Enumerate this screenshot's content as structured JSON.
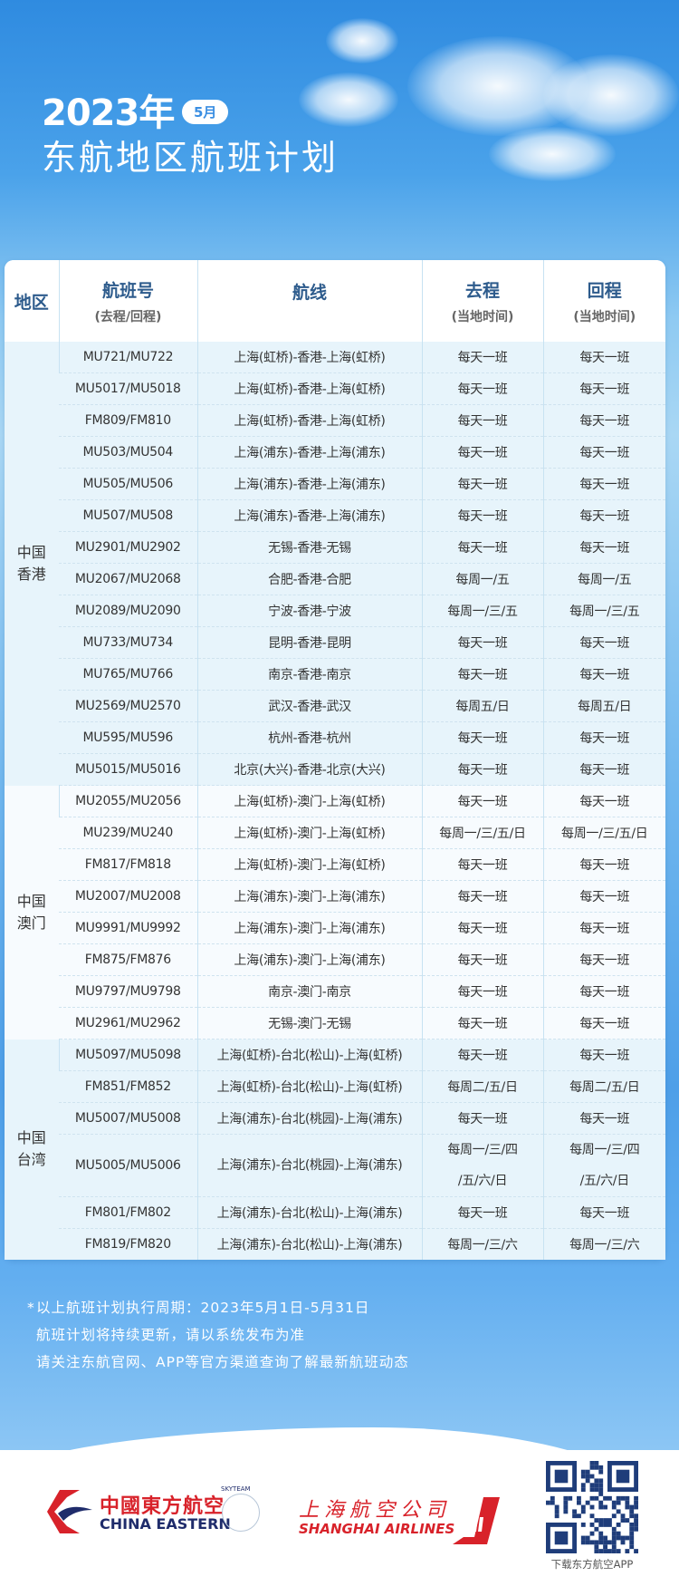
{
  "header": {
    "year": "2023年",
    "month_badge": "5月",
    "title": "东航地区航班计划"
  },
  "table": {
    "columns": [
      {
        "label": "地区",
        "sub": ""
      },
      {
        "label": "航班号",
        "sub": "(去程/回程)"
      },
      {
        "label": "航线",
        "sub": ""
      },
      {
        "label": "去程",
        "sub": "(当地时间)"
      },
      {
        "label": "回程",
        "sub": "(当地时间)"
      }
    ],
    "sections": [
      {
        "region": "中国\n香港",
        "rows": [
          {
            "flight": "MU721/MU722",
            "route": "上海(虹桥)-香港-上海(虹桥)",
            "outbound": "每天一班",
            "return": "每天一班"
          },
          {
            "flight": "MU5017/MU5018",
            "route": "上海(虹桥)-香港-上海(虹桥)",
            "outbound": "每天一班",
            "return": "每天一班"
          },
          {
            "flight": "FM809/FM810",
            "route": "上海(虹桥)-香港-上海(虹桥)",
            "outbound": "每天一班",
            "return": "每天一班"
          },
          {
            "flight": "MU503/MU504",
            "route": "上海(浦东)-香港-上海(浦东)",
            "outbound": "每天一班",
            "return": "每天一班"
          },
          {
            "flight": "MU505/MU506",
            "route": "上海(浦东)-香港-上海(浦东)",
            "outbound": "每天一班",
            "return": "每天一班"
          },
          {
            "flight": "MU507/MU508",
            "route": "上海(浦东)-香港-上海(浦东)",
            "outbound": "每天一班",
            "return": "每天一班"
          },
          {
            "flight": "MU2901/MU2902",
            "route": "无锡-香港-无锡",
            "outbound": "每天一班",
            "return": "每天一班"
          },
          {
            "flight": "MU2067/MU2068",
            "route": "合肥-香港-合肥",
            "outbound": "每周一/五",
            "return": "每周一/五"
          },
          {
            "flight": "MU2089/MU2090",
            "route": "宁波-香港-宁波",
            "outbound": "每周一/三/五",
            "return": "每周一/三/五"
          },
          {
            "flight": "MU733/MU734",
            "route": "昆明-香港-昆明",
            "outbound": "每天一班",
            "return": "每天一班"
          },
          {
            "flight": "MU765/MU766",
            "route": "南京-香港-南京",
            "outbound": "每天一班",
            "return": "每天一班"
          },
          {
            "flight": "MU2569/MU2570",
            "route": "武汉-香港-武汉",
            "outbound": "每周五/日",
            "return": "每周五/日"
          },
          {
            "flight": "MU595/MU596",
            "route": "杭州-香港-杭州",
            "outbound": "每天一班",
            "return": "每天一班"
          },
          {
            "flight": "MU5015/MU5016",
            "route": "北京(大兴)-香港-北京(大兴)",
            "outbound": "每天一班",
            "return": "每天一班"
          }
        ]
      },
      {
        "region": "中国\n澳门",
        "rows": [
          {
            "flight": "MU2055/MU2056",
            "route": "上海(虹桥)-澳门-上海(虹桥)",
            "outbound": "每天一班",
            "return": "每天一班"
          },
          {
            "flight": "MU239/MU240",
            "route": "上海(虹桥)-澳门-上海(虹桥)",
            "outbound": "每周一/三/五/日",
            "return": "每周一/三/五/日"
          },
          {
            "flight": "FM817/FM818",
            "route": "上海(虹桥)-澳门-上海(虹桥)",
            "outbound": "每天一班",
            "return": "每天一班"
          },
          {
            "flight": "MU2007/MU2008",
            "route": "上海(浦东)-澳门-上海(浦东)",
            "outbound": "每天一班",
            "return": "每天一班"
          },
          {
            "flight": "MU9991/MU9992",
            "route": "上海(浦东)-澳门-上海(浦东)",
            "outbound": "每天一班",
            "return": "每天一班"
          },
          {
            "flight": "FM875/FM876",
            "route": "上海(浦东)-澳门-上海(浦东)",
            "outbound": "每天一班",
            "return": "每天一班"
          },
          {
            "flight": "MU9797/MU9798",
            "route": "南京-澳门-南京",
            "outbound": "每天一班",
            "return": "每天一班"
          },
          {
            "flight": "MU2961/MU2962",
            "route": "无锡-澳门-无锡",
            "outbound": "每天一班",
            "return": "每天一班"
          }
        ]
      },
      {
        "region": "中国\n台湾",
        "rows": [
          {
            "flight": "MU5097/MU5098",
            "route": "上海(虹桥)-台北(松山)-上海(虹桥)",
            "outbound": "每天一班",
            "return": "每天一班"
          },
          {
            "flight": "FM851/FM852",
            "route": "上海(虹桥)-台北(松山)-上海(虹桥)",
            "outbound": "每周二/五/日",
            "return": "每周二/五/日"
          },
          {
            "flight": "MU5007/MU5008",
            "route": "上海(浦东)-台北(桃园)-上海(浦东)",
            "outbound": "每天一班",
            "return": "每天一班"
          },
          {
            "flight": "MU5005/MU5006",
            "route": "上海(浦东)-台北(桃园)-上海(浦东)",
            "outbound": "每周一/三/四\n/五/六/日",
            "return": "每周一/三/四\n/五/六/日"
          },
          {
            "flight": "FM801/FM802",
            "route": "上海(浦东)-台北(松山)-上海(浦东)",
            "outbound": "每天一班",
            "return": "每天一班"
          },
          {
            "flight": "FM819/FM820",
            "route": "上海(浦东)-台北(松山)-上海(浦东)",
            "outbound": "每周一/三/六",
            "return": "每周一/三/六"
          }
        ]
      }
    ]
  },
  "notes": {
    "star": "*",
    "lines": [
      "以上航班计划执行周期：2023年5月1日-5月31日",
      "航班计划将持续更新，请以系统发布为准",
      "请关注东航官网、APP等官方渠道查询了解最新航班动态"
    ]
  },
  "footer": {
    "china_eastern_cn": "中國東方航空",
    "china_eastern_en": "CHINA EASTERN",
    "skyteam": "SKYTEAM",
    "shanghai_airlines_cn": "上海航空公司",
    "shanghai_airlines_en": "SHANGHAI AIRLINES",
    "qr_caption": "下载东方航空APP"
  },
  "colors": {
    "brand_red": "#d8222a",
    "brand_navy": "#1f2c6b",
    "header_blue": "#2d5b8c",
    "sky_blue": "#4aa2ea"
  }
}
